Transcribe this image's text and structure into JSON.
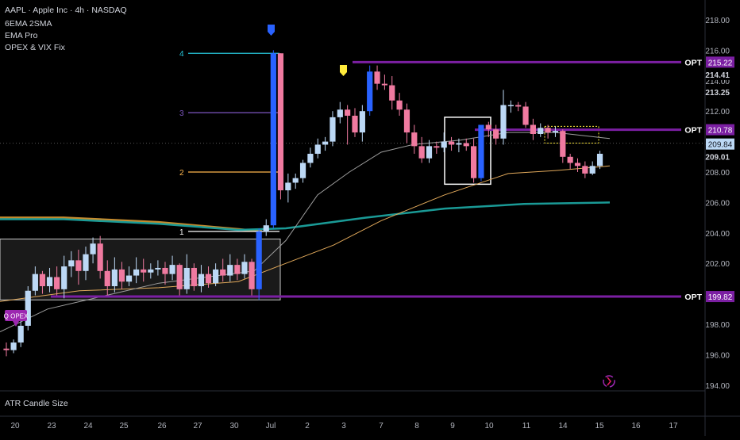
{
  "legend": {
    "title": "AAPL · Apple Inc · 4h · NASDAQ",
    "indicators": [
      "6EMA 2SMA",
      "EMA Pro",
      "OPEX & VIX Fix"
    ]
  },
  "atr_pane": {
    "label": "ATR Candle Size"
  },
  "colors": {
    "bull": "#bcd8f5",
    "bear": "#f07aa0",
    "strong_bull": "#2962ff",
    "ema_long": "#1a9a96",
    "ema_mid": "#e0a85a",
    "ema_fast": "#9e9e9e",
    "opt": "#7b1fa2",
    "accent_label": "#9c27b0"
  },
  "price_labels": [
    {
      "text": "OPT",
      "box": "215.22"
    },
    {
      "text": "OPT",
      "box": "210.78"
    },
    {
      "text": "OPT",
      "box": "199.82"
    }
  ],
  "current_price": "209.84",
  "extra_price_labels": [
    "214.41",
    "213.25",
    "209.01"
  ],
  "badge_q_opex": "Q OPEX",
  "level_labels": [
    {
      "text": "4",
      "color": "#26c6da"
    },
    {
      "text": "3",
      "color": "#7e57c2"
    },
    {
      "text": "2",
      "color": "#ffb74d"
    },
    {
      "text": "1",
      "color": "#ffffff"
    }
  ],
  "chart_data": {
    "type": "candlestick",
    "timeframe": "4h",
    "ylim": [
      194,
      218
    ],
    "y_ticks": [
      "218.00",
      "216.00",
      "214.00",
      "212.00",
      "210.00",
      "208.00",
      "206.00",
      "204.00",
      "202.00",
      "200.00",
      "198.00",
      "196.00",
      "194.00"
    ],
    "x_tick_labels": [
      "20",
      "23",
      "24",
      "25",
      "26",
      "27",
      "30",
      "Jul",
      "2",
      "3",
      "7",
      "8",
      "9",
      "10",
      "11",
      "14",
      "15",
      "16",
      "17"
    ],
    "opt_levels": [
      215.22,
      210.78,
      199.82
    ],
    "candles": [
      [
        196.4,
        196.3,
        195.9,
        196.8
      ],
      [
        196.3,
        196.8,
        196.1,
        197.0
      ],
      [
        196.8,
        197.9,
        196.5,
        198.2
      ],
      [
        197.9,
        200.2,
        197.6,
        200.5
      ],
      [
        200.2,
        201.3,
        199.9,
        201.8
      ],
      [
        201.3,
        200.5,
        200.0,
        201.5
      ],
      [
        200.5,
        201.1,
        200.1,
        201.7
      ],
      [
        201.1,
        200.3,
        199.9,
        201.8
      ],
      [
        200.3,
        201.8,
        199.7,
        202.5
      ],
      [
        201.8,
        202.2,
        201.1,
        202.8
      ],
      [
        202.2,
        201.5,
        200.6,
        202.9
      ],
      [
        201.5,
        202.6,
        200.9,
        203.1
      ],
      [
        202.6,
        203.3,
        202.0,
        203.7
      ],
      [
        203.3,
        201.5,
        201.0,
        203.8
      ],
      [
        201.5,
        200.5,
        199.9,
        202.2
      ],
      [
        200.5,
        201.6,
        200.1,
        202.4
      ],
      [
        201.6,
        200.8,
        200.3,
        202.1
      ],
      [
        200.8,
        201.2,
        200.5,
        201.8
      ],
      [
        201.2,
        201.6,
        200.7,
        202.4
      ],
      [
        201.6,
        201.4,
        200.8,
        202.3
      ],
      [
        201.4,
        201.6,
        201.0,
        202.0
      ],
      [
        201.6,
        201.7,
        201.2,
        202.2
      ],
      [
        201.7,
        201.3,
        200.6,
        202.1
      ],
      [
        201.3,
        201.9,
        200.9,
        202.5
      ],
      [
        201.9,
        200.3,
        199.9,
        202.0
      ],
      [
        200.3,
        201.7,
        200.0,
        202.6
      ],
      [
        201.7,
        200.5,
        200.2,
        202.0
      ],
      [
        200.5,
        201.3,
        200.1,
        201.9
      ],
      [
        201.3,
        200.7,
        200.4,
        201.8
      ],
      [
        200.7,
        201.6,
        200.5,
        202.0
      ],
      [
        201.6,
        201.2,
        200.8,
        202.3
      ],
      [
        201.2,
        201.9,
        200.8,
        202.6
      ],
      [
        201.9,
        201.3,
        200.9,
        202.3
      ],
      [
        201.3,
        202.1,
        201.0,
        202.6
      ],
      [
        202.1,
        200.3,
        199.9,
        202.3
      ],
      [
        200.3,
        204.1,
        199.6,
        204.3
      ],
      [
        204.1,
        204.5,
        203.8,
        204.9
      ],
      [
        204.5,
        215.8,
        204.3,
        216.0
      ],
      [
        215.8,
        206.8,
        206.2,
        215.8
      ],
      [
        206.8,
        207.3,
        206.0,
        207.9
      ],
      [
        207.3,
        207.6,
        206.9,
        207.9
      ],
      [
        207.6,
        208.6,
        207.3,
        208.8
      ],
      [
        208.6,
        209.2,
        208.3,
        209.6
      ],
      [
        209.2,
        209.8,
        208.9,
        210.2
      ],
      [
        209.8,
        210.0,
        209.4,
        210.3
      ],
      [
        210.0,
        211.6,
        209.7,
        212.0
      ],
      [
        211.6,
        212.1,
        211.2,
        212.6
      ],
      [
        212.1,
        211.7,
        209.8,
        212.4
      ],
      [
        211.7,
        210.6,
        210.3,
        212.2
      ],
      [
        210.6,
        212.0,
        210.0,
        212.4
      ],
      [
        212.0,
        214.6,
        211.7,
        215.0
      ],
      [
        214.6,
        213.8,
        213.4,
        215.0
      ],
      [
        213.8,
        213.7,
        213.4,
        214.4
      ],
      [
        213.7,
        212.7,
        212.1,
        214.3
      ],
      [
        212.7,
        212.1,
        211.7,
        213.2
      ],
      [
        212.1,
        210.6,
        209.9,
        212.5
      ],
      [
        210.6,
        209.7,
        209.2,
        211.1
      ],
      [
        209.7,
        208.9,
        208.6,
        210.3
      ],
      [
        208.9,
        209.7,
        208.6,
        210.1
      ],
      [
        209.7,
        209.6,
        209.2,
        210.0
      ],
      [
        209.6,
        210.0,
        209.3,
        210.6
      ],
      [
        210.0,
        209.8,
        209.4,
        210.3
      ],
      [
        209.8,
        209.9,
        209.3,
        210.2
      ],
      [
        209.9,
        209.7,
        209.4,
        210.2
      ],
      [
        209.7,
        207.6,
        207.3,
        210.2
      ],
      [
        207.6,
        211.1,
        207.4,
        211.1
      ],
      [
        211.1,
        210.8,
        210.3,
        211.3
      ],
      [
        210.8,
        210.2,
        209.8,
        211.1
      ],
      [
        210.2,
        212.4,
        209.8,
        213.4
      ],
      [
        212.4,
        212.4,
        211.9,
        212.7
      ],
      [
        212.4,
        212.3,
        212.0,
        212.6
      ],
      [
        212.3,
        211.1,
        210.9,
        212.6
      ],
      [
        211.1,
        210.5,
        210.1,
        211.5
      ],
      [
        210.5,
        210.9,
        210.3,
        211.2
      ],
      [
        210.9,
        210.6,
        210.2,
        211.1
      ],
      [
        210.6,
        210.7,
        210.3,
        211.0
      ],
      [
        210.7,
        209.0,
        208.6,
        210.8
      ],
      [
        209.0,
        208.6,
        208.2,
        209.2
      ],
      [
        208.6,
        208.4,
        208.0,
        208.9
      ],
      [
        208.4,
        207.9,
        207.6,
        208.7
      ],
      [
        207.9,
        208.4,
        207.8,
        208.7
      ],
      [
        208.4,
        209.2,
        208.2,
        209.4
      ]
    ],
    "annotations": {
      "q_opex": "Q OPEX"
    }
  }
}
